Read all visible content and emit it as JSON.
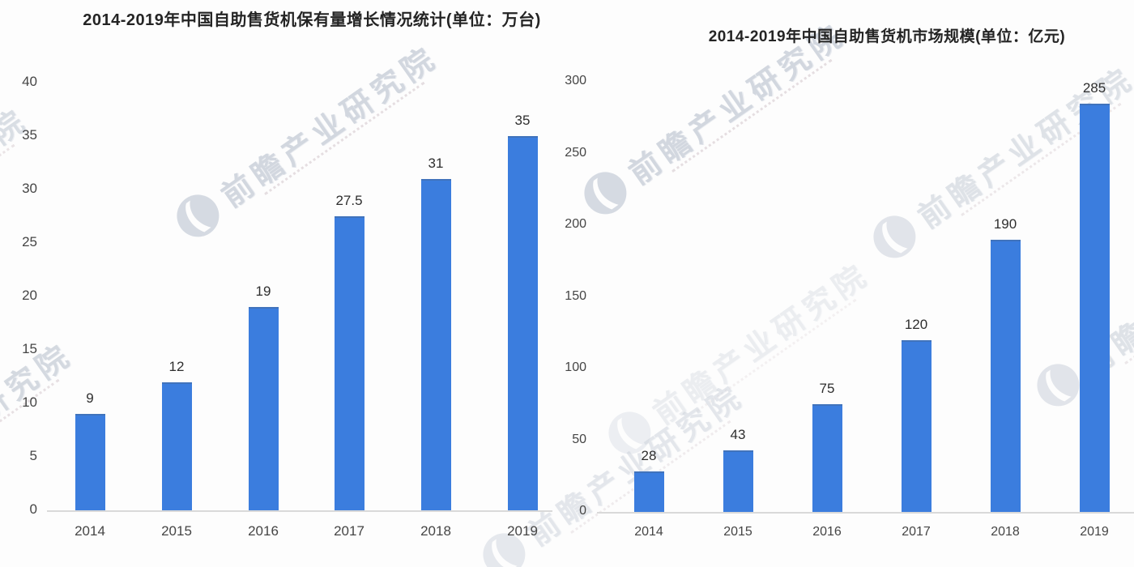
{
  "page": {
    "background": "#fdfdfd"
  },
  "watermark": {
    "brand_text": "前瞻产业研究院",
    "logo": "qianzhan-circle-logo",
    "color": "#cbd1da"
  },
  "chart_data": [
    {
      "type": "bar",
      "title": "2014-2019年中国自助售货机保有量增长情况统计(单位：万台)",
      "unit": "万台",
      "categories": [
        "2014",
        "2015",
        "2016",
        "2017",
        "2018",
        "2019"
      ],
      "values": [
        9,
        12,
        19,
        27.5,
        31,
        35
      ],
      "value_labels": [
        "9",
        "12",
        "19",
        "27.5",
        "31",
        "35"
      ],
      "xlabel": "",
      "ylabel": "",
      "ylim": [
        0,
        40
      ],
      "yticks": [
        0,
        5,
        10,
        15,
        20,
        25,
        30,
        35,
        40
      ],
      "grid": false,
      "legend": null,
      "bar_color": "#3b7dde"
    },
    {
      "type": "bar",
      "title": "2014-2019年中国自助售货机市场规模(单位：亿元)",
      "unit": "亿元",
      "categories": [
        "2014",
        "2015",
        "2016",
        "2017",
        "2018",
        "2019"
      ],
      "values": [
        28,
        43,
        75,
        120,
        190,
        285
      ],
      "value_labels": [
        "28",
        "43",
        "75",
        "120",
        "190",
        "285"
      ],
      "xlabel": "",
      "ylabel": "",
      "ylim": [
        0,
        300
      ],
      "yticks": [
        0,
        50,
        100,
        150,
        200,
        250,
        300
      ],
      "grid": false,
      "legend": null,
      "bar_color": "#3b7dde"
    }
  ]
}
